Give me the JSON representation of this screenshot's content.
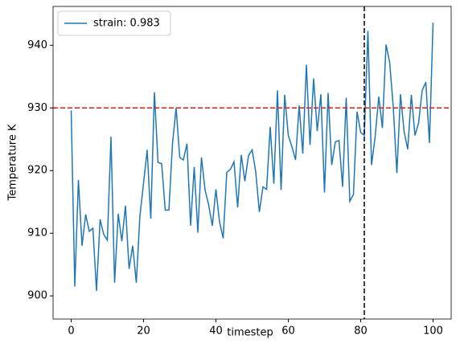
{
  "chart_data": {
    "type": "line",
    "x_label": "timestep",
    "y_label": "Temperature K",
    "x": [
      0,
      1,
      2,
      3,
      4,
      5,
      6,
      7,
      8,
      9,
      10,
      11,
      12,
      13,
      14,
      15,
      16,
      17,
      18,
      19,
      20,
      21,
      22,
      23,
      24,
      25,
      26,
      27,
      28,
      29,
      30,
      31,
      32,
      33,
      34,
      35,
      36,
      37,
      38,
      39,
      40,
      41,
      42,
      43,
      44,
      45,
      46,
      47,
      48,
      49,
      50,
      51,
      52,
      53,
      54,
      55,
      56,
      57,
      58,
      59,
      60,
      61,
      62,
      63,
      64,
      65,
      66,
      67,
      68,
      69,
      70,
      71,
      72,
      73,
      74,
      75,
      76,
      77,
      78,
      79,
      80,
      81,
      82,
      83,
      84,
      85,
      86,
      87,
      88,
      89,
      90,
      91,
      92,
      93,
      94,
      95,
      96,
      97,
      98,
      99,
      100
    ],
    "series": [
      {
        "name": "strain: 0.983",
        "color": "#1f77b4",
        "values": [
          929.6,
          901.5,
          918.5,
          908,
          913,
          910.3,
          910.8,
          900.8,
          912.2,
          909.8,
          908.9,
          925.4,
          902.1,
          913.1,
          908.7,
          914.4,
          904.3,
          908,
          902.1,
          912.8,
          918,
          923.3,
          912.3,
          932.5,
          921.3,
          921.1,
          913.7,
          913.7,
          924.3,
          930,
          922.1,
          921.7,
          924.3,
          911.2,
          920.6,
          910.1,
          922.1,
          916.9,
          914.5,
          911.2,
          917,
          911.8,
          909.2,
          919.7,
          920.2,
          921.4,
          914.1,
          922.5,
          918.3,
          922.4,
          923.3,
          919.8,
          913.4,
          917.4,
          917,
          927,
          917.9,
          932.8,
          916.9,
          932.1,
          925.6,
          923.8,
          921.7,
          930.4,
          922.7,
          936.9,
          924.1,
          934.7,
          926.3,
          932.2,
          916.5,
          932.4,
          920.9,
          924.6,
          924.8,
          917.4,
          931.6,
          915.1,
          916.2,
          929.4,
          926.1,
          925.6,
          942.3,
          920.9,
          925.4,
          931.8,
          926.8,
          940.1,
          937.3,
          930.2,
          919.6,
          932.2,
          926.2,
          923.4,
          932.1,
          925.6,
          927.6,
          932.8,
          934.1,
          924.4,
          943.6
        ]
      }
    ],
    "hline": {
      "y": 930,
      "color": "#e41a1c"
    },
    "vline": {
      "x": 81,
      "color": "#000000"
    },
    "xlim": [
      -5,
      105
    ],
    "xticks": [
      0,
      20,
      40,
      60,
      80,
      100
    ],
    "ylim": [
      896.3,
      946.2
    ],
    "yticks": [
      900,
      910,
      920,
      930,
      940
    ],
    "legend": "upper-left"
  }
}
